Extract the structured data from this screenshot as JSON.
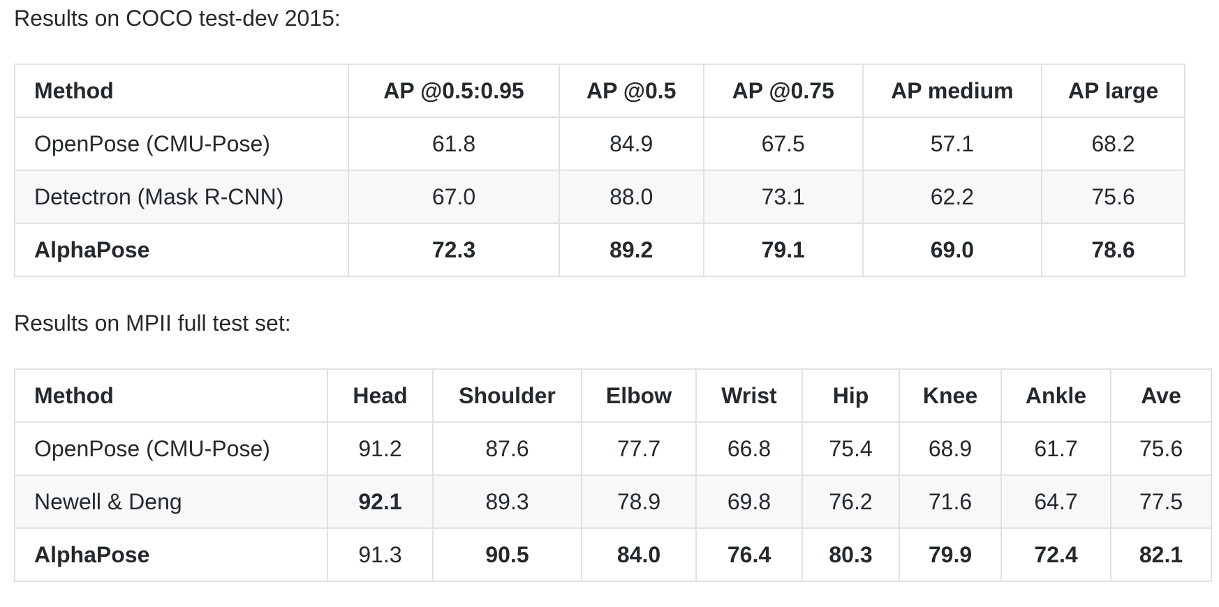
{
  "coco": {
    "caption": "Results on COCO test-dev 2015:",
    "headers": [
      "Method",
      "AP @0.5:0.95",
      "AP @0.5",
      "AP @0.75",
      "AP medium",
      "AP large"
    ],
    "rows": [
      [
        "OpenPose (CMU-Pose)",
        "61.8",
        "84.9",
        "67.5",
        "57.1",
        "68.2"
      ],
      [
        "Detectron (Mask R-CNN)",
        "67.0",
        "88.0",
        "73.1",
        "62.2",
        "75.6"
      ],
      [
        "AlphaPose",
        "72.3",
        "89.2",
        "79.1",
        "69.0",
        "78.6"
      ]
    ]
  },
  "mpii": {
    "caption": "Results on MPII full test set:",
    "headers": [
      "Method",
      "Head",
      "Shoulder",
      "Elbow",
      "Wrist",
      "Hip",
      "Knee",
      "Ankle",
      "Ave"
    ],
    "rows": [
      [
        "OpenPose (CMU-Pose)",
        "91.2",
        "87.6",
        "77.7",
        "66.8",
        "75.4",
        "68.9",
        "61.7",
        "75.6"
      ],
      [
        "Newell & Deng",
        "92.1",
        "89.3",
        "78.9",
        "69.8",
        "76.2",
        "71.6",
        "64.7",
        "77.5"
      ],
      [
        "AlphaPose",
        "91.3",
        "90.5",
        "84.0",
        "76.4",
        "80.3",
        "79.9",
        "72.4",
        "82.1"
      ]
    ]
  },
  "colors": {
    "text": "#24292e",
    "border": "#dfe2e5",
    "stripe": "#f6f8fa"
  }
}
